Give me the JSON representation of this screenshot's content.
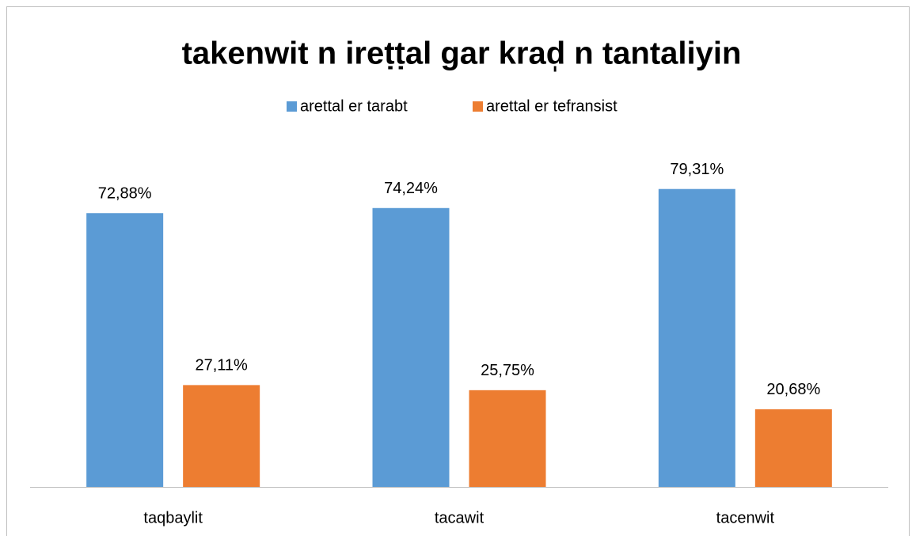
{
  "chart_data": {
    "type": "bar",
    "title": "takenwit n ireṭṭal gar krad̩ n tantaliyin",
    "categories": [
      "taqbaylit",
      "tacawit",
      "tacenwit"
    ],
    "series": [
      {
        "name": "arettal er tarabt",
        "color": "#5b9bd5",
        "values": [
          72.88,
          74.24,
          79.31
        ],
        "value_labels": [
          "72,88%",
          "74,24%",
          "79,31%"
        ]
      },
      {
        "name": "arettal er tefransist",
        "color": "#ed7d31",
        "values": [
          27.11,
          25.75,
          20.68
        ],
        "value_labels": [
          "27,11%",
          "25,75%",
          "20,68%"
        ]
      }
    ],
    "ylim": [
      0,
      90
    ],
    "legend": "top"
  }
}
